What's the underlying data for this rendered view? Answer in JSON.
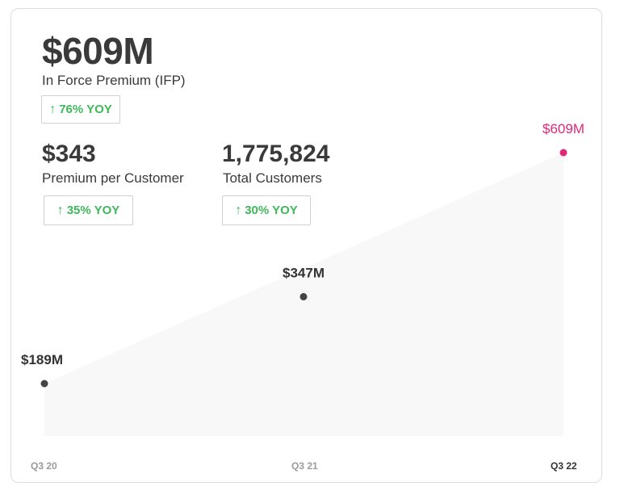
{
  "headline": {
    "value": "$609M",
    "label": "In Force Premium (IFP)",
    "yoy": "76% YOY"
  },
  "metrics": [
    {
      "value": "$343",
      "label": "Premium per Customer",
      "yoy": "35% YOY"
    },
    {
      "value": "1,775,824",
      "label": "Total Customers",
      "yoy": "30% YOY"
    }
  ],
  "icons": {
    "yoy_arrow": "arrow-up-icon",
    "glyph": "↑"
  },
  "colors": {
    "accent": "#e0287a",
    "dot": "#444444",
    "positive": "#3fb85a",
    "area": "#f8f8f8",
    "axis_label": "#9a9a9a",
    "axis_label_last": "#333333"
  },
  "chart_data": {
    "type": "area",
    "title": "In Force Premium (IFP)",
    "categories": [
      "Q3 20",
      "Q3 21",
      "Q3 22"
    ],
    "values": [
      189,
      347,
      609
    ],
    "value_labels": [
      "$189M",
      "$347M",
      "$609M"
    ],
    "unit": "$M",
    "ylim": [
      0,
      609
    ],
    "highlight_index": 2
  }
}
